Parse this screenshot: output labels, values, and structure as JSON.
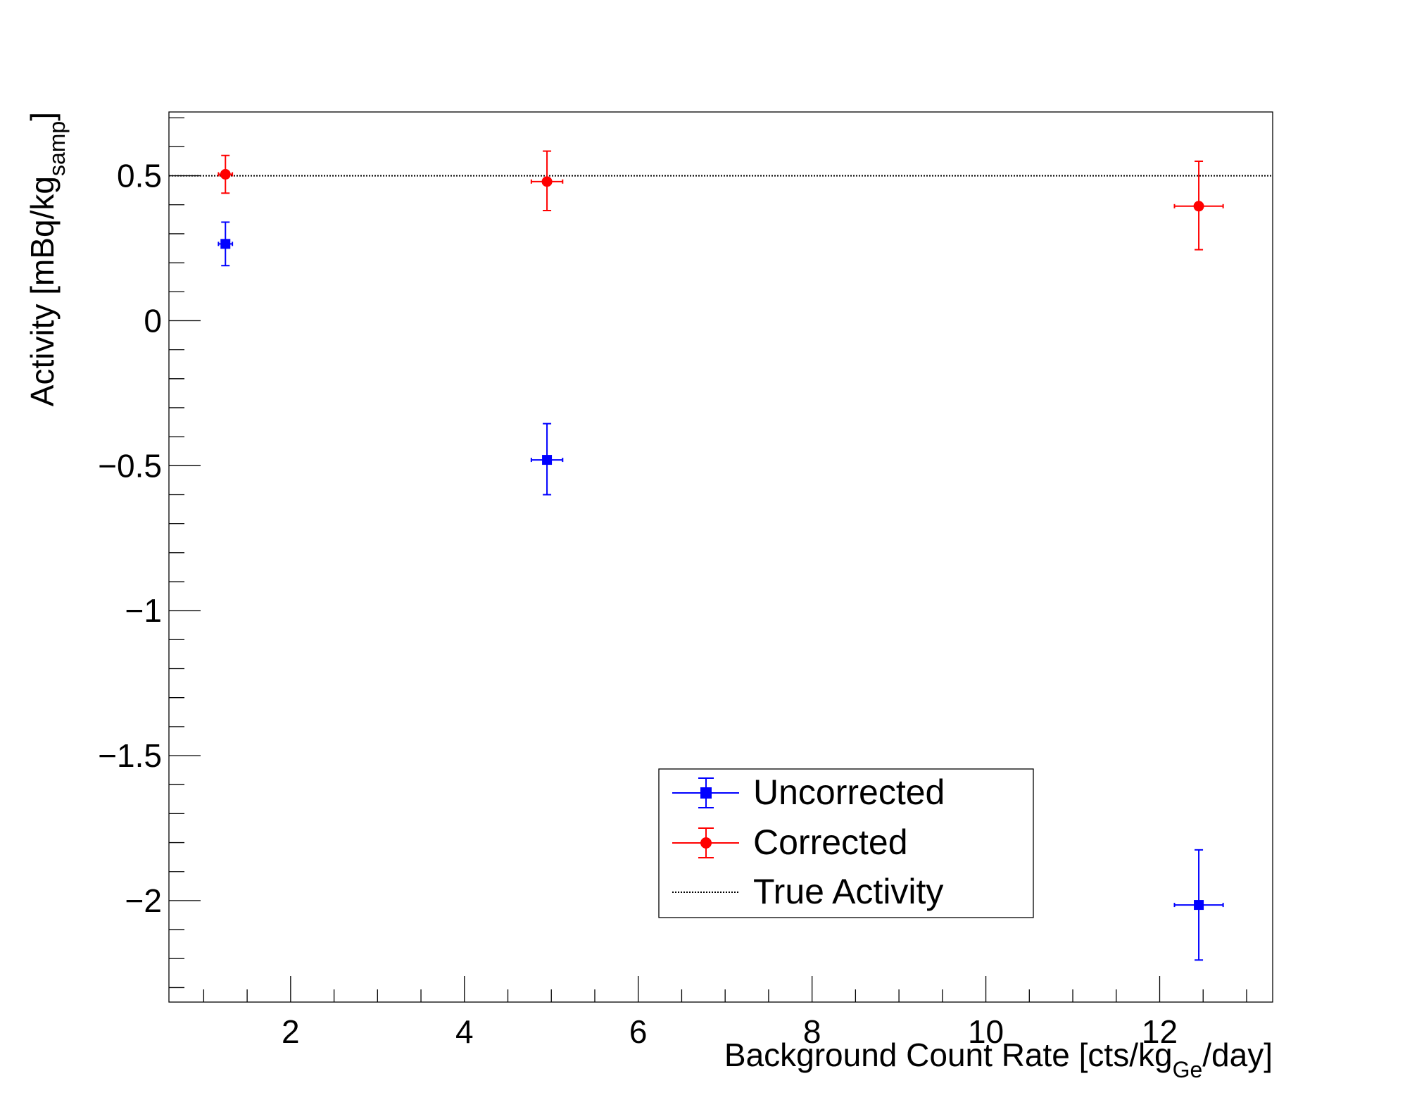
{
  "chart_data": {
    "type": "scatter",
    "xlabel_parts": [
      "Background Count Rate [cts/kg",
      "Ge",
      "/day]"
    ],
    "ylabel_parts": [
      "Activity [mBq/kg",
      "samp",
      "]"
    ],
    "xlim": [
      0.6,
      13.3
    ],
    "ylim": [
      -2.35,
      0.72
    ],
    "x_ticks": [
      2,
      4,
      6,
      8,
      10,
      12
    ],
    "x_tick_labels": [
      "2",
      "4",
      "6",
      "8",
      "10",
      "12"
    ],
    "y_ticks": [
      0.5,
      0,
      -0.5,
      -1,
      -1.5,
      -2
    ],
    "y_tick_labels": [
      "0.5",
      "0",
      "−0.5",
      "−1",
      "−1.5",
      "−2"
    ],
    "grid": false,
    "legend_position": "bottom-right",
    "reference_line": {
      "name": "True Activity",
      "y": 0.5,
      "style": "dotted",
      "color": "#000000"
    },
    "series": [
      {
        "name": "Uncorrected",
        "marker": "square",
        "color": "#0000ff",
        "points": [
          {
            "x": 1.25,
            "y": 0.265,
            "xerr": 0.08,
            "yerr_low": 0.075,
            "yerr_high": 0.075
          },
          {
            "x": 4.95,
            "y": -0.48,
            "xerr": 0.18,
            "yerr_low": 0.12,
            "yerr_high": 0.125
          },
          {
            "x": 12.45,
            "y": -2.015,
            "xerr": 0.28,
            "yerr_low": 0.19,
            "yerr_high": 0.19
          }
        ]
      },
      {
        "name": "Corrected",
        "marker": "circle",
        "color": "#ff0000",
        "points": [
          {
            "x": 1.25,
            "y": 0.505,
            "xerr": 0.08,
            "yerr_low": 0.065,
            "yerr_high": 0.065
          },
          {
            "x": 4.95,
            "y": 0.48,
            "xerr": 0.18,
            "yerr_low": 0.1,
            "yerr_high": 0.105
          },
          {
            "x": 12.45,
            "y": 0.395,
            "xerr": 0.28,
            "yerr_low": 0.15,
            "yerr_high": 0.155
          }
        ]
      }
    ]
  }
}
